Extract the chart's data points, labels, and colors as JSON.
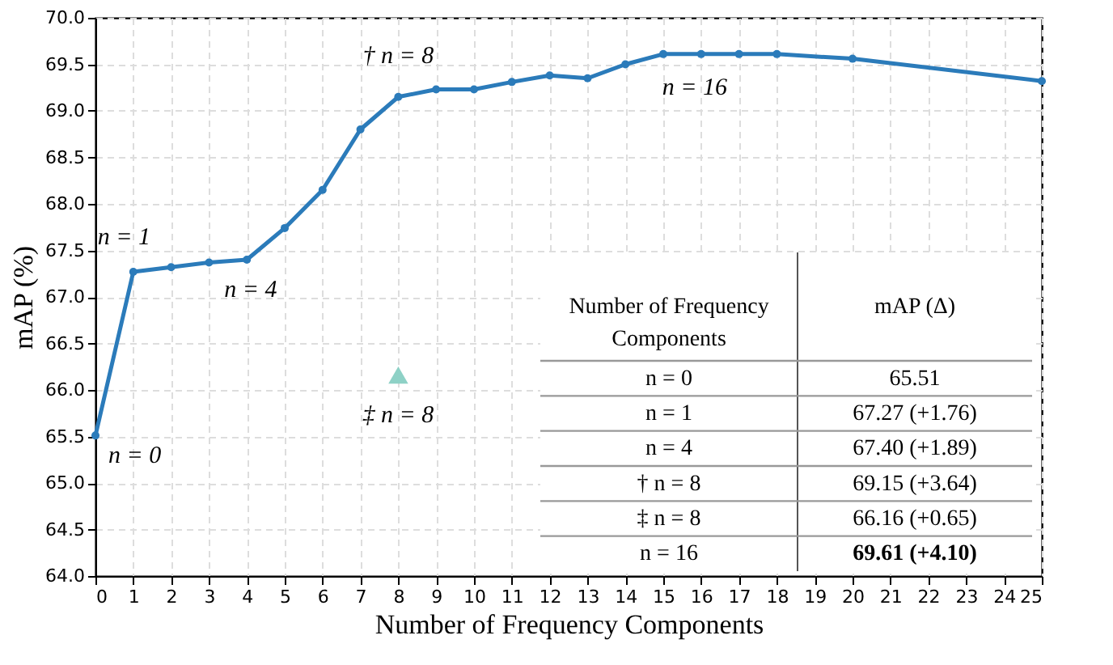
{
  "chart_data": {
    "type": "line",
    "xlabel": "Number of Frequency Components",
    "ylabel": "mAP (%)",
    "series": [
      {
        "type": "line",
        "color": "#2b7bba",
        "marker": "circle",
        "line_style": "solid",
        "x": [
          0,
          1,
          2,
          3,
          4,
          5,
          6,
          7,
          8,
          9,
          10,
          11,
          12,
          13,
          14,
          15,
          16,
          17,
          18,
          20,
          25
        ],
        "values": [
          65.51,
          67.27,
          67.32,
          67.37,
          67.4,
          67.74,
          68.15,
          68.8,
          69.15,
          69.23,
          69.23,
          69.31,
          69.38,
          69.35,
          69.5,
          69.61,
          69.61,
          69.61,
          69.61,
          69.56,
          69.32
        ]
      },
      {
        "type": "scatter",
        "color": "#8ed1c6",
        "marker": "triangle",
        "x": [
          8
        ],
        "values": [
          66.16
        ]
      }
    ],
    "xlim": [
      0,
      25
    ],
    "xticks": [
      0,
      1,
      2,
      3,
      4,
      5,
      6,
      7,
      8,
      9,
      10,
      11,
      12,
      13,
      14,
      15,
      16,
      17,
      18,
      19,
      20,
      21,
      22,
      23,
      24,
      25
    ],
    "ylim": [
      64,
      70
    ],
    "yticks": [
      {
        "value": 64,
        "label": "64.0"
      },
      64.5,
      {
        "value": 65,
        "label": "65.0"
      },
      65.5,
      {
        "value": 66,
        "label": "66.0"
      },
      66.5,
      {
        "value": 67,
        "label": "67.0"
      },
      67.5,
      {
        "value": 68,
        "label": "68.0"
      },
      68.5,
      {
        "value": 69,
        "label": "69.0"
      },
      69.5,
      {
        "value": 70,
        "label": "70.0"
      }
    ],
    "grid": true,
    "legend": false,
    "annotations": [
      {
        "text": "n = 0",
        "x": 0,
        "y": 65.51
      },
      {
        "text": "n = 1",
        "x": 1,
        "y": 67.27
      },
      {
        "text": "n = 4",
        "x": 4,
        "y": 67.4
      },
      {
        "text": "† n = 8",
        "x": 8,
        "y": 69.15
      },
      {
        "text": "‡ n = 8",
        "x": 8,
        "y": 66.16
      },
      {
        "text": "n = 16",
        "x": 16,
        "y": 69.61
      },
      "Number of Frequency Components",
      "mAP (Δ)",
      "n = 0",
      "65.51",
      "n = 1",
      "67.27 (+1.76)",
      "n = 4",
      "67.40 (+1.89)",
      "† n = 8",
      "69.15 (+3.64)",
      "‡ n = 8",
      "66.16 (+0.65)",
      "n = 16",
      "69.61 (+4.10)"
    ]
  }
}
